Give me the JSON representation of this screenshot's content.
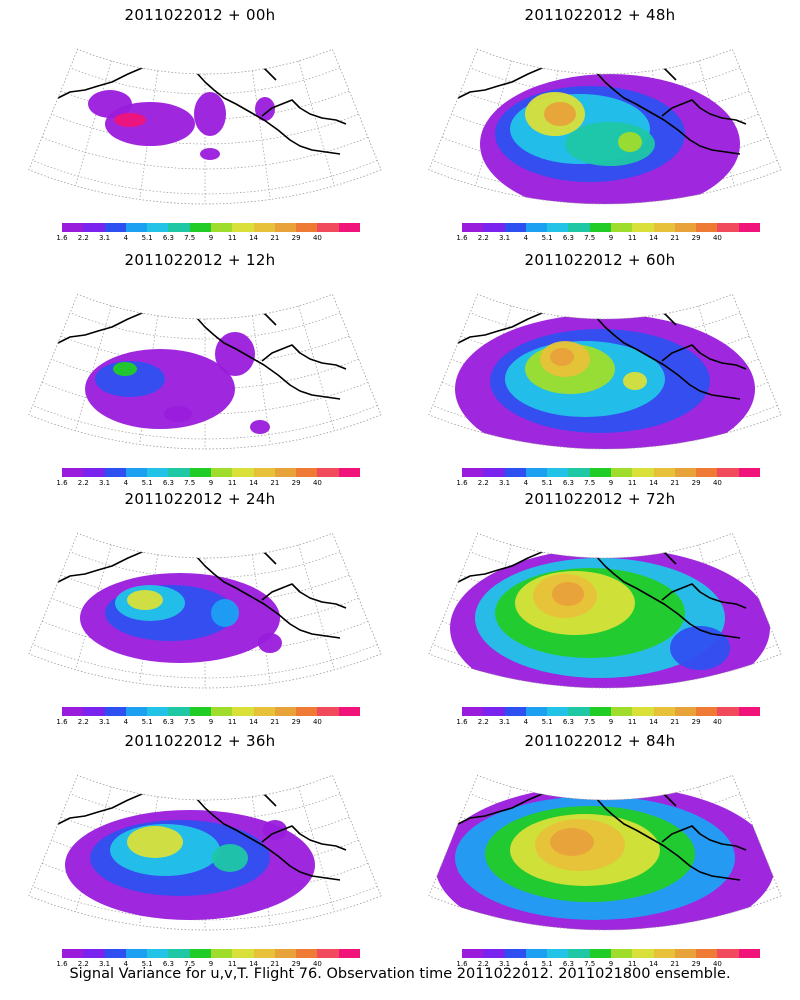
{
  "panels": [
    {
      "title": "2011022012 + 00h",
      "level": 0
    },
    {
      "title": "2011022012 + 48h",
      "level": 4
    },
    {
      "title": "2011022012 + 12h",
      "level": 1
    },
    {
      "title": "2011022012 + 60h",
      "level": 5
    },
    {
      "title": "2011022012 + 24h",
      "level": 2
    },
    {
      "title": "2011022012 + 72h",
      "level": 6
    },
    {
      "title": "2011022012 + 36h",
      "level": 3
    },
    {
      "title": "2011022012 + 84h",
      "level": 7
    }
  ],
  "colorbar": {
    "colors": [
      "#9a1bdc",
      "#7a22ee",
      "#2f50f0",
      "#1ea0f2",
      "#23c3e8",
      "#1fc7a5",
      "#22cc26",
      "#9fdd2c",
      "#d9e03a",
      "#e8c13a",
      "#e8a23a",
      "#ee7a36",
      "#f04a5c",
      "#f0147a"
    ],
    "labels": [
      "1.6",
      "2.2",
      "3.1",
      "4",
      "5.1",
      "6.3",
      "7.5",
      "9",
      "11",
      "14",
      "21",
      "29",
      "40"
    ]
  },
  "caption": "Signal Variance for u,v,T. Flight 76. Observation time 2011022012. 2011021800 ensemble."
}
